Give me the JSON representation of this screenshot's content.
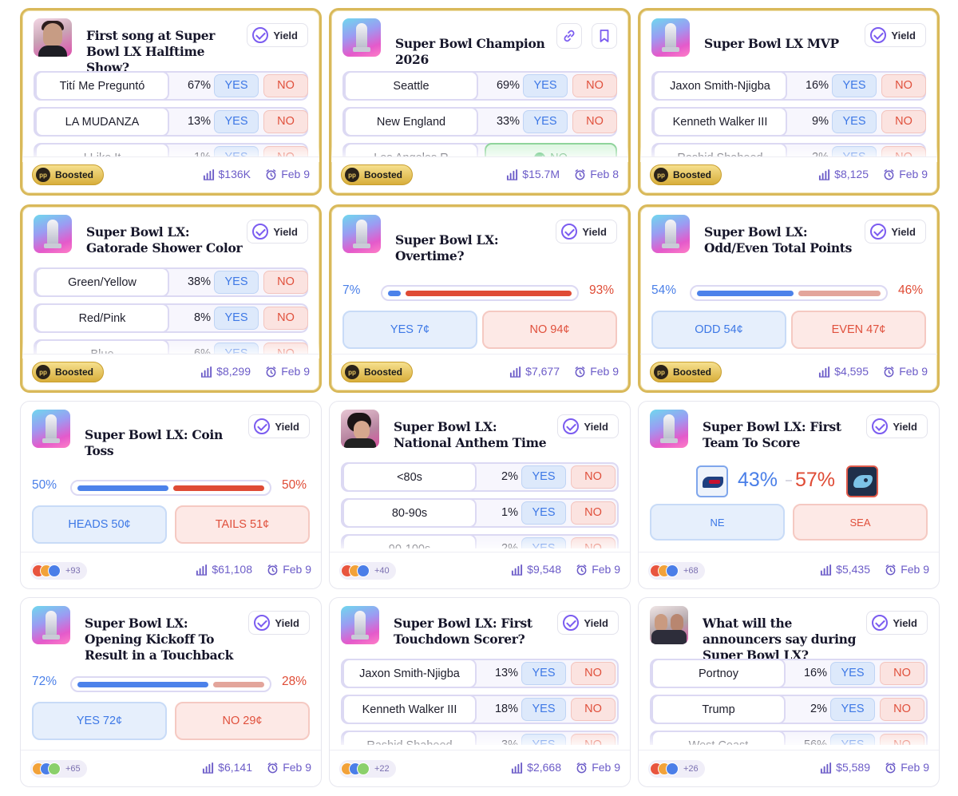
{
  "colors": {
    "accent": "#7b5cf0",
    "yes": "#3d78e6",
    "no": "#e0503c",
    "gold": "#d9b95a"
  },
  "yield_label": "Yield",
  "boosted_label": "Boosted",
  "cards": {
    "halftime": {
      "title": "First song at Super Bowl LX Halftime Show?",
      "rows": [
        {
          "name": "Tití Me Preguntó",
          "pct": "67%",
          "yes": "YES",
          "no": "NO"
        },
        {
          "name": "LA MUDANZA",
          "pct": "13%",
          "yes": "YES",
          "no": "NO"
        },
        {
          "name": "I Like It",
          "pct": "1%",
          "yes": "YES",
          "no": "NO"
        }
      ],
      "volume": "$136K",
      "date": "Feb 9"
    },
    "champion": {
      "title": "Super Bowl Champion 2026",
      "rows": [
        {
          "name": "Seattle",
          "pct": "69%",
          "yes": "YES",
          "no": "NO"
        },
        {
          "name": "New England",
          "pct": "33%",
          "yes": "YES",
          "no": "NO"
        },
        {
          "name": "Los Angeles R",
          "resolved": "NO"
        }
      ],
      "volume": "$15.7M",
      "date": "Feb 8"
    },
    "mvp": {
      "title": "Super Bowl LX MVP",
      "rows": [
        {
          "name": "Jaxon Smith-Njigba",
          "pct": "16%",
          "yes": "YES",
          "no": "NO"
        },
        {
          "name": "Kenneth Walker III",
          "pct": "9%",
          "yes": "YES",
          "no": "NO"
        },
        {
          "name": "Rashid Shaheed",
          "pct": "2%",
          "yes": "YES",
          "no": "NO"
        }
      ],
      "volume": "$8,125",
      "date": "Feb 9"
    },
    "gatorade": {
      "title": "Super Bowl LX: Gatorade Shower Color",
      "rows": [
        {
          "name": "Green/Yellow",
          "pct": "38%",
          "yes": "YES",
          "no": "NO"
        },
        {
          "name": "Red/Pink",
          "pct": "8%",
          "yes": "YES",
          "no": "NO"
        },
        {
          "name": "Blue",
          "pct": "6%",
          "yes": "YES",
          "no": "NO"
        }
      ],
      "volume": "$8,299",
      "date": "Feb 9"
    },
    "overtime": {
      "title": "Super Bowl LX: Overtime?",
      "left_pct": "7%",
      "right_pct": "93%",
      "left_value": 7,
      "right_value": 93,
      "yes_btn": "YES 7¢",
      "no_btn": "NO 94¢",
      "volume": "$7,677",
      "date": "Feb 9"
    },
    "oddeven": {
      "title": "Super Bowl LX: Odd/Even Total Points",
      "left_pct": "54%",
      "right_pct": "46%",
      "left_value": 54,
      "right_value": 46,
      "yes_btn": "ODD 54¢",
      "no_btn": "EVEN 47¢",
      "volume": "$4,595",
      "date": "Feb 9"
    },
    "cointoss": {
      "title": "Super Bowl LX: Coin Toss",
      "left_pct": "50%",
      "right_pct": "50%",
      "left_value": 50,
      "right_value": 50,
      "yes_btn": "HEADS 50¢",
      "no_btn": "TAILS 51¢",
      "traders": "+93",
      "volume": "$61,108",
      "date": "Feb 9"
    },
    "anthem": {
      "title": "Super Bowl LX: National Anthem Time",
      "rows": [
        {
          "name": "<80s",
          "pct": "2%",
          "yes": "YES",
          "no": "NO"
        },
        {
          "name": "80-90s",
          "pct": "1%",
          "yes": "YES",
          "no": "NO"
        },
        {
          "name": "90-100s",
          "pct": "2%",
          "yes": "YES",
          "no": "NO"
        }
      ],
      "traders": "+40",
      "volume": "$9,548",
      "date": "Feb 9"
    },
    "firstscore": {
      "title": "Super Bowl LX: First Team To Score",
      "left_pct": "43%",
      "right_pct": "57%",
      "yes_btn": "NE",
      "no_btn": "SEA",
      "traders": "+68",
      "volume": "$5,435",
      "date": "Feb 9"
    },
    "kickoff": {
      "title": "Super Bowl LX: Opening Kickoff To Result in a Touchback",
      "left_pct": "72%",
      "right_pct": "28%",
      "left_value": 72,
      "right_value": 28,
      "yes_btn": "YES 72¢",
      "no_btn": "NO 29¢",
      "traders": "+65",
      "volume": "$6,141",
      "date": "Feb 9"
    },
    "touchdown": {
      "title": "Super Bowl LX: First Touchdown Scorer?",
      "rows": [
        {
          "name": "Jaxon Smith-Njigba",
          "pct": "13%",
          "yes": "YES",
          "no": "NO"
        },
        {
          "name": "Kenneth Walker III",
          "pct": "18%",
          "yes": "YES",
          "no": "NO"
        },
        {
          "name": "Rashid Shaheed",
          "pct": "3%",
          "yes": "YES",
          "no": "NO"
        }
      ],
      "traders": "+22",
      "volume": "$2,668",
      "date": "Feb 9"
    },
    "announcers": {
      "title": "What will the announcers say during Super Bowl LX?",
      "rows": [
        {
          "name": "Portnoy",
          "pct": "16%",
          "yes": "YES",
          "no": "NO"
        },
        {
          "name": "Trump",
          "pct": "2%",
          "yes": "YES",
          "no": "NO"
        },
        {
          "name": "West Coast",
          "pct": "56%",
          "yes": "YES",
          "no": "NO"
        }
      ],
      "traders": "+26",
      "volume": "$5,589",
      "date": "Feb 9"
    }
  }
}
